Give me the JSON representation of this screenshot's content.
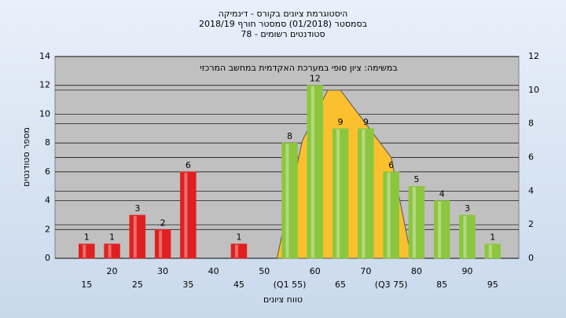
{
  "chart_data": {
    "type": "bar",
    "title": "היסטוגרמת ציונים בקורס - דינמיקה",
    "subtitle": "בסמסטר  (01/2018)  סמסטר חורף  2018/19",
    "subtitle2": "סטודנטים רשומים - 78",
    "annotation": "במשימה: ציון סופי במערכת האקדמית במחשב המרכזי",
    "ylabel": "מספר סטודנטים",
    "xlabel": "טווח ציונים",
    "categories": [
      "15",
      "20",
      "25",
      "30",
      "35",
      "40",
      "45",
      "50",
      "(Q1 55)",
      "60",
      "65",
      "70",
      "(Q3 75)",
      "80",
      "85",
      "90",
      "95"
    ],
    "x": [
      15,
      20,
      25,
      30,
      35,
      40,
      45,
      50,
      55,
      60,
      65,
      70,
      75,
      80,
      85,
      90,
      95
    ],
    "values": [
      1,
      1,
      3,
      2,
      6,
      null,
      1,
      null,
      8,
      12,
      9,
      9,
      6,
      5,
      4,
      3,
      1
    ],
    "colors": [
      "#e02020",
      "#e02020",
      "#e02020",
      "#e02020",
      "#e02020",
      "#e02020",
      "#e02020",
      "#e02020",
      "#8cc63f",
      "#8cc63f",
      "#8cc63f",
      "#8cc63f",
      "#8cc63f",
      "#8cc63f",
      "#8cc63f",
      "#8cc63f",
      "#8cc63f"
    ],
    "area": {
      "axis": "y2",
      "color": "#fbc02d",
      "x": [
        52.5,
        57.5,
        62.5,
        65,
        75,
        79
      ],
      "values": [
        0,
        7,
        10,
        10,
        6,
        0
      ]
    },
    "xlim": [
      10,
      100
    ],
    "ylim": [
      0,
      14
    ],
    "yticks": [
      0,
      2,
      4,
      6,
      8,
      10,
      12,
      14
    ],
    "y2lim": [
      0,
      12
    ],
    "y2ticks": [
      0,
      2,
      4,
      6,
      8,
      10,
      12
    ],
    "grid": true
  }
}
